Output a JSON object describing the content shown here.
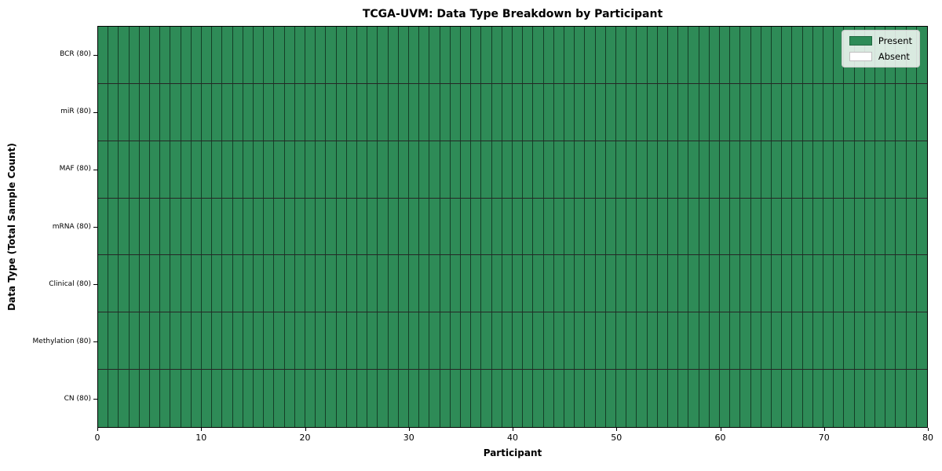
{
  "chart_data": {
    "type": "heatmap",
    "title": "TCGA-UVM: Data Type Breakdown by Participant",
    "xlabel": "Participant",
    "ylabel": "Data Type (Total Sample Count)",
    "x_range": [
      0,
      80
    ],
    "x_ticks": [
      0,
      10,
      20,
      30,
      40,
      50,
      60,
      70,
      80
    ],
    "n_participants": 80,
    "rows": [
      {
        "label": "BCR (80)",
        "data_type": "BCR",
        "total_samples": 80,
        "present_count": 80
      },
      {
        "label": "miR (80)",
        "data_type": "miR",
        "total_samples": 80,
        "present_count": 80
      },
      {
        "label": "MAF (80)",
        "data_type": "MAF",
        "total_samples": 80,
        "present_count": 80
      },
      {
        "label": "mRNA (80)",
        "data_type": "mRNA",
        "total_samples": 80,
        "present_count": 80
      },
      {
        "label": "Clinical (80)",
        "data_type": "Clinical",
        "total_samples": 80,
        "present_count": 80
      },
      {
        "label": "Methylation (80)",
        "data_type": "Methylation",
        "total_samples": 80,
        "present_count": 80
      },
      {
        "label": "CN (80)",
        "data_type": "CN",
        "total_samples": 80,
        "present_count": 80
      }
    ],
    "legend": {
      "position": "upper right",
      "entries": [
        {
          "label": "Present",
          "color": "#2e8b57"
        },
        {
          "label": "Absent",
          "color": "#ffffff"
        }
      ]
    },
    "colors": {
      "present": "#2e8b57",
      "absent": "#ffffff",
      "grid_on": true
    },
    "layout": {
      "grid_rows": 7,
      "grid_cols": 80
    }
  }
}
